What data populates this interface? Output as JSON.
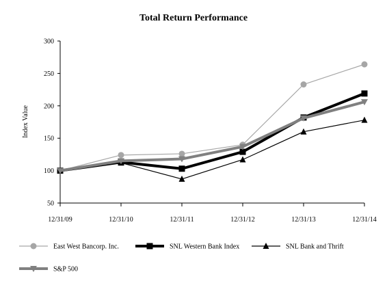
{
  "chart_data": {
    "type": "line",
    "title": "Total Return Performance",
    "xlabel": "",
    "ylabel": "Index Value",
    "categories": [
      "12/31/09",
      "12/31/10",
      "12/31/11",
      "12/31/12",
      "12/31/13",
      "12/31/14"
    ],
    "ylim": [
      50,
      300
    ],
    "yticks": [
      50,
      100,
      150,
      200,
      250,
      300
    ],
    "grid": false,
    "legend_position": "bottom",
    "series": [
      {
        "name": "East West Bancorp. Inc.",
        "values": [
          100,
          124,
          126,
          140,
          233,
          264
        ],
        "color": "#a6a6a6",
        "marker": "circle",
        "line_weight": "thin"
      },
      {
        "name": "SNL Western Bank Index",
        "values": [
          100,
          113,
          103,
          129,
          182,
          219
        ],
        "color": "#000000",
        "marker": "square",
        "line_weight": "thick"
      },
      {
        "name": "SNL Bank and Thrift",
        "values": [
          100,
          112,
          87,
          117,
          160,
          178
        ],
        "color": "#000000",
        "marker": "triangle-up",
        "line_weight": "thin"
      },
      {
        "name": "S&P 500",
        "values": [
          100,
          115,
          118,
          137,
          181,
          206
        ],
        "color": "#808080",
        "marker": "triangle-down",
        "line_weight": "thick"
      }
    ]
  }
}
